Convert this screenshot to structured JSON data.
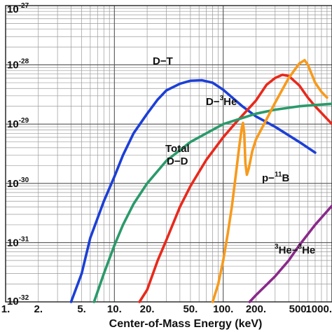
{
  "chart_data": {
    "type": "line",
    "title": "",
    "xlabel": "Center-of-Mass Energy (keV)",
    "ylabel": "",
    "x_scale": "log",
    "y_scale": "log",
    "xlim": [
      1,
      1000
    ],
    "ylim": [
      1e-32,
      1e-27
    ],
    "grid": true,
    "x_ticks": [
      {
        "value": 1,
        "label": "1."
      },
      {
        "value": 2,
        "label": "2."
      },
      {
        "value": 5,
        "label": "5."
      },
      {
        "value": 10,
        "label": "10."
      },
      {
        "value": 20,
        "label": "20."
      },
      {
        "value": 50,
        "label": "50."
      },
      {
        "value": 100,
        "label": "100."
      },
      {
        "value": 200,
        "label": "200."
      },
      {
        "value": 500,
        "label": "500."
      },
      {
        "value": 1000,
        "label": "1000."
      }
    ],
    "y_ticks": [
      {
        "exp": -27,
        "base": "10",
        "sup": "-27"
      },
      {
        "exp": -28,
        "base": "10",
        "sup": "-28"
      },
      {
        "exp": -29,
        "base": "10",
        "sup": "-29"
      },
      {
        "exp": -30,
        "base": "10",
        "sup": "-30"
      },
      {
        "exp": -31,
        "base": "10",
        "sup": "-31"
      },
      {
        "exp": -32,
        "base": "10",
        "sup": "-32"
      }
    ],
    "series": [
      {
        "name": "D–T",
        "color": "#1c3fd6",
        "points": [
          [
            4.0,
            1e-32
          ],
          [
            5,
            3e-32
          ],
          [
            6,
            1.2e-31
          ],
          [
            8,
            5e-31
          ],
          [
            10,
            1.3e-30
          ],
          [
            12,
            3e-30
          ],
          [
            15,
            7e-30
          ],
          [
            20,
            1.5e-29
          ],
          [
            25,
            2.6e-29
          ],
          [
            30,
            3.7e-29
          ],
          [
            40,
            4.8e-29
          ],
          [
            50,
            5.4e-29
          ],
          [
            64,
            5.5e-29
          ],
          [
            80,
            5e-29
          ],
          [
            100,
            3.8e-29
          ],
          [
            150,
            2e-29
          ],
          [
            200,
            1.35e-29
          ],
          [
            300,
            9e-30
          ],
          [
            500,
            5e-30
          ],
          [
            700,
            3.3e-30
          ]
        ]
      },
      {
        "name": "D–³He",
        "color": "#e8291c",
        "points": [
          [
            17,
            1e-32
          ],
          [
            20,
            1.6e-32
          ],
          [
            25,
            5e-32
          ],
          [
            30,
            1.1e-31
          ],
          [
            40,
            4e-31
          ],
          [
            50,
            9e-31
          ],
          [
            70,
            2.5e-30
          ],
          [
            100,
            6e-30
          ],
          [
            130,
            1.05e-29
          ],
          [
            170,
            1.8e-29
          ],
          [
            200,
            2.5e-29
          ],
          [
            250,
            4.6e-29
          ],
          [
            300,
            6e-29
          ],
          [
            350,
            6.8e-29
          ],
          [
            400,
            6.5e-29
          ],
          [
            500,
            4.5e-29
          ],
          [
            600,
            2.8e-29
          ],
          [
            700,
            2e-29
          ],
          [
            1000,
            1e-29
          ]
        ]
      },
      {
        "name": "Total D–D",
        "color": "#2a9a6a",
        "points": [
          [
            6.5,
            1e-32
          ],
          [
            8,
            3e-32
          ],
          [
            10,
            9e-32
          ],
          [
            12,
            2e-31
          ],
          [
            15,
            4.5e-31
          ],
          [
            20,
            1e-30
          ],
          [
            30,
            2.4e-30
          ],
          [
            50,
            5e-30
          ],
          [
            100,
            1e-29
          ],
          [
            200,
            1.5e-29
          ],
          [
            300,
            1.75e-29
          ],
          [
            500,
            2e-29
          ],
          [
            700,
            2.1e-29
          ],
          [
            1000,
            2.2e-29
          ]
        ]
      },
      {
        "name": "p–¹¹B",
        "color": "#f79a1c",
        "points": [
          [
            80,
            1e-32
          ],
          [
            90,
            2e-32
          ],
          [
            100,
            5e-32
          ],
          [
            110,
            1.4e-31
          ],
          [
            120,
            4e-31
          ],
          [
            130,
            1.3e-30
          ],
          [
            140,
            4e-30
          ],
          [
            148,
            8.5e-30
          ],
          [
            152,
            1.05e-29
          ],
          [
            156,
            7e-30
          ],
          [
            160,
            2.2e-30
          ],
          [
            165,
            1.4e-30
          ],
          [
            172,
            1.8e-30
          ],
          [
            185,
            3.5e-30
          ],
          [
            200,
            5.5e-30
          ],
          [
            250,
            1.2e-29
          ],
          [
            300,
            2.3e-29
          ],
          [
            400,
            6e-29
          ],
          [
            500,
            1.05e-28
          ],
          [
            560,
            1.2e-28
          ],
          [
            600,
            1e-28
          ],
          [
            700,
            5e-29
          ],
          [
            800,
            3.5e-29
          ],
          [
            900,
            2.8e-29
          ]
        ]
      },
      {
        "name": "³He–³He",
        "color": "#8a2a8a",
        "points": [
          [
            175,
            1e-32
          ],
          [
            200,
            1.3e-32
          ],
          [
            300,
            2.7e-32
          ],
          [
            400,
            5e-32
          ],
          [
            500,
            9e-32
          ],
          [
            700,
            2e-31
          ],
          [
            1000,
            4.2e-31
          ]
        ]
      }
    ],
    "curve_labels": [
      {
        "series": 0,
        "base": "D−T",
        "sup": "",
        "tail": ""
      },
      {
        "series": 1,
        "base": "D−",
        "sup": "3",
        "tail": "He"
      },
      {
        "series": 2,
        "base": "Total",
        "sup": "",
        "tail": ""
      },
      {
        "series": 2,
        "base": "D−D",
        "sup": "",
        "tail": ""
      },
      {
        "series": 3,
        "base": "p−",
        "sup": "11",
        "tail": "B"
      },
      {
        "series": 4,
        "base": "",
        "sup": "3",
        "tail": "He−",
        "sup2": "3",
        "tail2": "He"
      }
    ]
  }
}
